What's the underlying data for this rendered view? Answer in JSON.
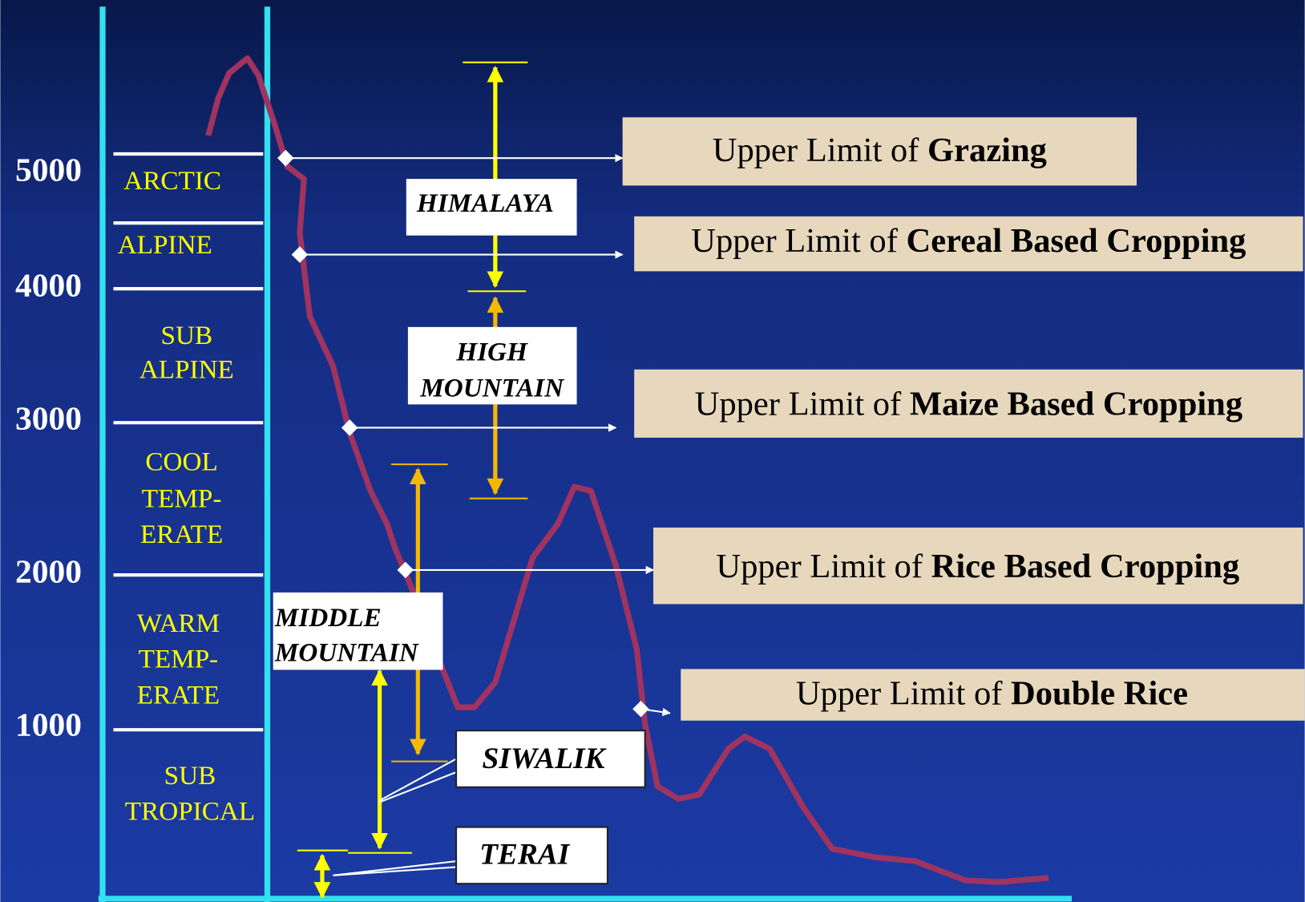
{
  "altitudes": [
    "5000",
    "4000",
    "3000",
    "2000",
    "1000"
  ],
  "zones": [
    [
      "ARCTIC"
    ],
    [
      "ALPINE"
    ],
    [
      "SUB",
      "ALPINE"
    ],
    [
      "COOL",
      "TEMP-",
      "ERATE"
    ],
    [
      "WARM",
      "TEMP-",
      "ERATE"
    ],
    [
      "SUB",
      "TROPICAL"
    ]
  ],
  "limits": [
    {
      "prefix": "Upper Limit of",
      "crop": "Grazing"
    },
    {
      "prefix": "Upper Limit of",
      "crop": "Cereal Based Cropping"
    },
    {
      "prefix": "Upper Limit of",
      "crop": "Maize Based Cropping"
    },
    {
      "prefix": "Upper Limit of",
      "crop": "Rice Based Cropping"
    },
    {
      "prefix": "Upper Limit of",
      "crop": "Double Rice"
    }
  ],
  "regions": [
    [
      "HIMALAYA"
    ],
    [
      "HIGH",
      "MOUNTAIN"
    ],
    [
      "MIDDLE",
      "MOUNTAIN"
    ],
    [
      "SIWALIK"
    ],
    [
      "TERAI"
    ]
  ]
}
